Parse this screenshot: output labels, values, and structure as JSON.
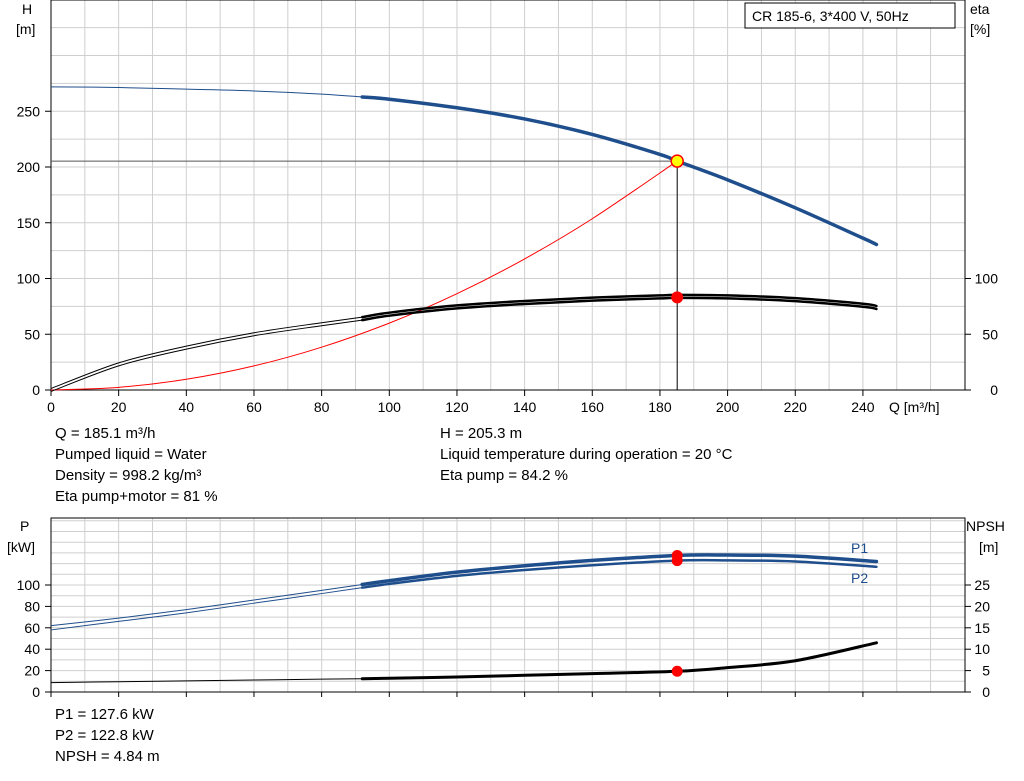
{
  "chart_data": [
    {
      "type": "line",
      "title": "CR 185-6, 3*400 V, 50Hz",
      "xlabel": "Q [m³/h]",
      "ylabel_left": "H\n[m]",
      "ylabel_right": "eta\n[%]",
      "xlim": [
        0,
        260
      ],
      "xticks": [
        0,
        20,
        40,
        60,
        80,
        100,
        120,
        140,
        160,
        180,
        200,
        220,
        240
      ],
      "ylim_left": [
        0,
        300
      ],
      "yticks_left": [
        0,
        50,
        100,
        150,
        200,
        250
      ],
      "ylim_right": [
        0,
        100
      ],
      "yticks_right": [
        0,
        50,
        100
      ],
      "grid": true,
      "series": [
        {
          "axis": "left",
          "color": "#1f4e8c",
          "x": [
            0,
            20,
            40,
            60,
            80,
            92,
            100,
            120,
            140,
            160,
            180,
            185.1,
            200,
            220,
            240,
            244
          ],
          "y": [
            271.9,
            271.3,
            269.8,
            268.2,
            265.4,
            262.8,
            260.8,
            253.1,
            243.1,
            229.2,
            211.3,
            205.3,
            188.5,
            163.4,
            136.2,
            130.5
          ]
        },
        {
          "axis": "right",
          "color": "#000000",
          "x": [
            0,
            20,
            40,
            60,
            80,
            92,
            100,
            120,
            140,
            160,
            180,
            185.1,
            200,
            220,
            240,
            244
          ],
          "y": [
            0,
            23,
            38,
            50,
            59,
            64,
            68,
            74.5,
            78.5,
            81.5,
            83.5,
            84,
            83.5,
            81,
            76,
            74
          ]
        },
        {
          "axis": "left",
          "color": "#ff0000",
          "x": [
            0,
            20,
            40,
            60,
            80,
            100,
            120,
            140,
            160,
            185.1
          ],
          "y": [
            0,
            2.4,
            9.6,
            21.6,
            38.4,
            60,
            86.4,
            117.6,
            153.6,
            205.3
          ]
        }
      ],
      "duty_point": {
        "x": 185.1,
        "y": 205.3
      }
    },
    {
      "type": "line",
      "xlabel": "",
      "ylabel_left": "P\n[kW]",
      "ylabel_right": "NPSH\n[m]",
      "xlim": [
        0,
        260
      ],
      "ylim_left": [
        0,
        150
      ],
      "yticks_left": [
        0,
        20,
        40,
        60,
        80,
        100
      ],
      "ylim_right": [
        0,
        37.5
      ],
      "yticks_right": [
        0,
        5,
        10,
        15,
        20,
        25
      ],
      "grid": true,
      "series": [
        {
          "name": "P1",
          "axis": "left",
          "color": "#1f4e8c",
          "x": [
            0,
            20,
            40,
            60,
            80,
            92,
            100,
            120,
            140,
            160,
            185.1,
            200,
            220,
            244
          ],
          "y": [
            62,
            69,
            77,
            86,
            95,
            100.5,
            104,
            112,
            118,
            123,
            127.6,
            128,
            127,
            122
          ]
        },
        {
          "name": "P2",
          "axis": "left",
          "color": "#1f4e8c",
          "x": [
            0,
            20,
            40,
            60,
            80,
            92,
            100,
            120,
            140,
            160,
            185.1,
            200,
            220,
            244
          ],
          "y": [
            58,
            66,
            74,
            83,
            92,
            97.5,
            101,
            108.5,
            114,
            118.5,
            122.8,
            123,
            122,
            117
          ]
        },
        {
          "axis": "right",
          "color": "#000000",
          "x": [
            0,
            20,
            40,
            60,
            80,
            92,
            100,
            120,
            140,
            160,
            185.1,
            200,
            220,
            244
          ],
          "y": [
            2.2,
            2.4,
            2.6,
            2.8,
            3.0,
            3.1,
            3.2,
            3.5,
            3.9,
            4.3,
            4.84,
            5.7,
            7.3,
            11.5
          ]
        }
      ],
      "duty_points": {
        "x": 185.1,
        "P1": 127.6,
        "P2": 122.8,
        "NPSH": 4.84
      }
    }
  ],
  "info_top_left": [
    "Q = 185.1 m³/h",
    "Pumped liquid = Water",
    "Density = 998.2 kg/m³",
    "Eta pump+motor = 81 %"
  ],
  "info_top_right": [
    "H = 205.3 m",
    "Liquid temperature during operation = 20 °C",
    "Eta pump = 84.2 %"
  ],
  "info_bottom": [
    "P1 = 127.6 kW",
    "P2 = 122.8 kW",
    "NPSH = 4.84 m"
  ],
  "colors": {
    "head": "#1f4e8c",
    "power": "#1f4e8c",
    "eta": "#000000",
    "npsh": "#000000",
    "system": "#ff0000",
    "grid": "#cfcfcf",
    "marker": "#ff0000",
    "duty_marker_fill": "#ffff00"
  }
}
